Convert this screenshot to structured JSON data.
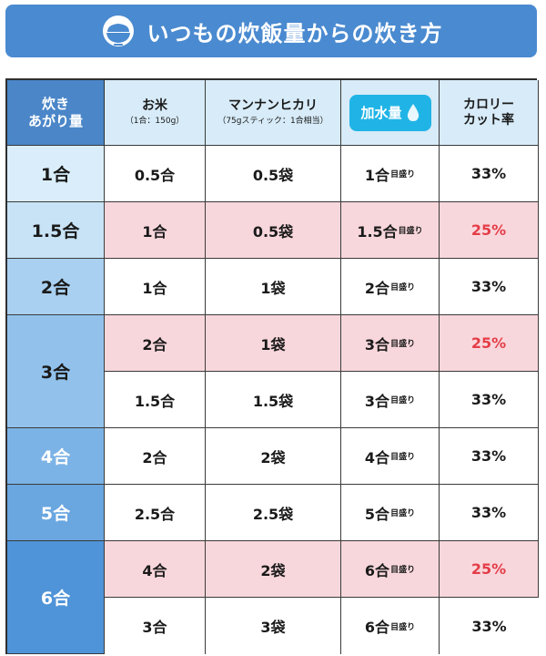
{
  "banner": {
    "title": "いつもの炊飯量からの炊き方",
    "icon": "rice-bowl-icon",
    "color": "#4a8ad0"
  },
  "header": {
    "cooked_line1": "炊き",
    "cooked_line2": "あがり量",
    "rice_label": "お米",
    "rice_sub": "（1合：150g）",
    "mannan_label": "マンナンヒカリ",
    "mannan_sub": "（75gスティック：1合相当）",
    "water_label": "加水量",
    "calorie_line1": "カロリー",
    "calorie_line2": "カット率"
  },
  "cooked_amounts": [
    "1合",
    "1.5合",
    "2合",
    "3合",
    "4合",
    "5合",
    "6合"
  ],
  "rows": [
    {
      "rice": "0.5合",
      "mannan": "0.5袋",
      "water": "1合",
      "water_unit": "目盛り",
      "cut": "33%",
      "highlight": false
    },
    {
      "rice": "1合",
      "mannan": "0.5袋",
      "water": "1.5合",
      "water_unit": "目盛り",
      "cut": "25%",
      "highlight": true
    },
    {
      "rice": "1合",
      "mannan": "1袋",
      "water": "2合",
      "water_unit": "目盛り",
      "cut": "33%",
      "highlight": false
    },
    {
      "rice": "2合",
      "mannan": "1袋",
      "water": "3合",
      "water_unit": "目盛り",
      "cut": "25%",
      "highlight": true
    },
    {
      "rice": "1.5合",
      "mannan": "1.5袋",
      "water": "3合",
      "water_unit": "目盛り",
      "cut": "33%",
      "highlight": false
    },
    {
      "rice": "2合",
      "mannan": "2袋",
      "water": "4合",
      "water_unit": "目盛り",
      "cut": "33%",
      "highlight": false
    },
    {
      "rice": "2.5合",
      "mannan": "2.5袋",
      "water": "5合",
      "water_unit": "目盛り",
      "cut": "33%",
      "highlight": false
    },
    {
      "rice": "4合",
      "mannan": "2袋",
      "water": "6合",
      "water_unit": "目盛り",
      "cut": "25%",
      "highlight": true
    },
    {
      "rice": "3合",
      "mannan": "3袋",
      "water": "6合",
      "water_unit": "目盛り",
      "cut": "33%",
      "highlight": false
    }
  ],
  "colors": {
    "highlight_row": "#f8d7dc",
    "highlight_text": "#e43d48",
    "water_badge": "#20b4e6"
  }
}
